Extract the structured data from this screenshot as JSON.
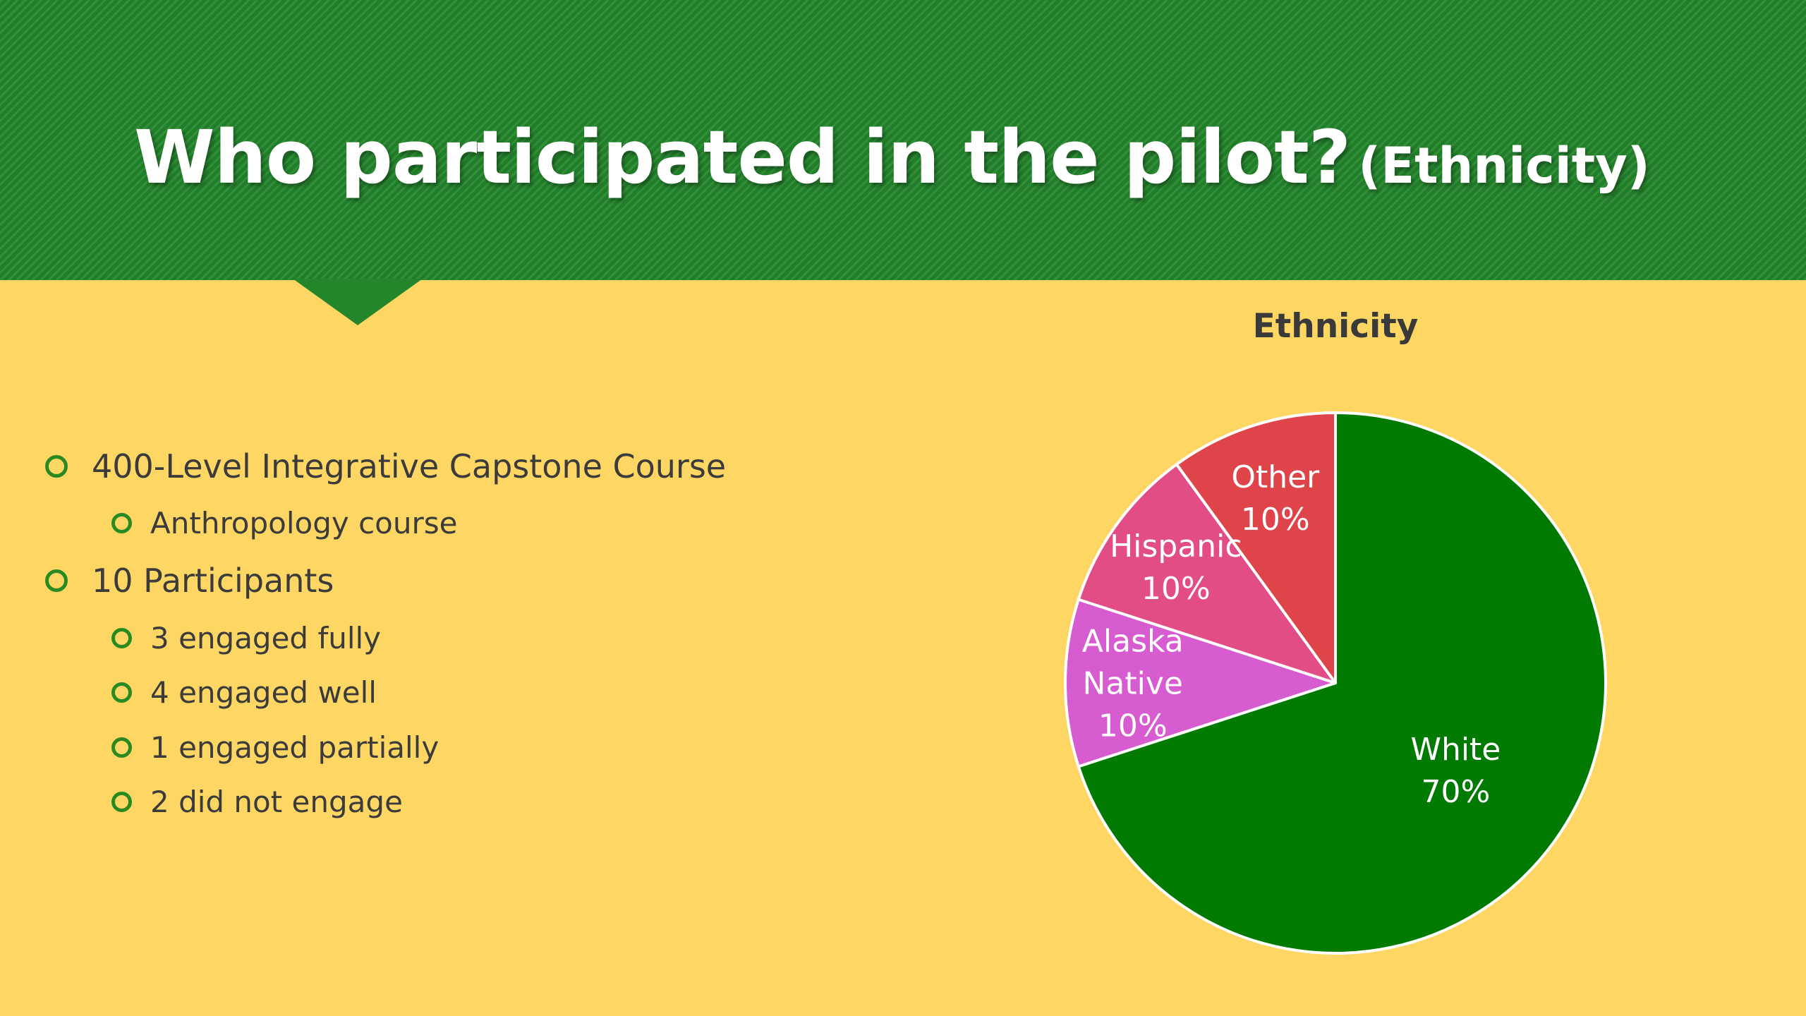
{
  "slide": {
    "title_main": "Who participated in the pilot?",
    "title_sub": "(Ethnicity)",
    "colors": {
      "header_green": "#23862B",
      "background_yellow": "#FED663",
      "bullet_ring": "#2A8A22"
    }
  },
  "bullets": [
    {
      "text": "400-Level Integrative Capstone Course",
      "level": 1
    },
    {
      "text": "Anthropology course",
      "level": 2
    },
    {
      "text": "10 Participants",
      "level": 1
    },
    {
      "text": "3 engaged fully",
      "level": 2
    },
    {
      "text": "4 engaged well",
      "level": 2
    },
    {
      "text": "1 engaged partially",
      "level": 2
    },
    {
      "text": "2 did not engage",
      "level": 2
    }
  ],
  "chart_data": {
    "type": "pie",
    "title": "Ethnicity",
    "start": "12 o'clock, clockwise",
    "slices": [
      {
        "name": "White",
        "value": 70,
        "label": "70%",
        "color": "#007A00"
      },
      {
        "name": "Alaska Native",
        "value": 10,
        "label": "10%",
        "color": "#D65CD0"
      },
      {
        "name": "Hispanic",
        "value": 10,
        "label": "10%",
        "color": "#E34D85"
      },
      {
        "name": "Other",
        "value": 10,
        "label": "10%",
        "color": "#DE4449"
      }
    ],
    "legend": "none",
    "data_labels": "category name and percentage inside slices"
  }
}
